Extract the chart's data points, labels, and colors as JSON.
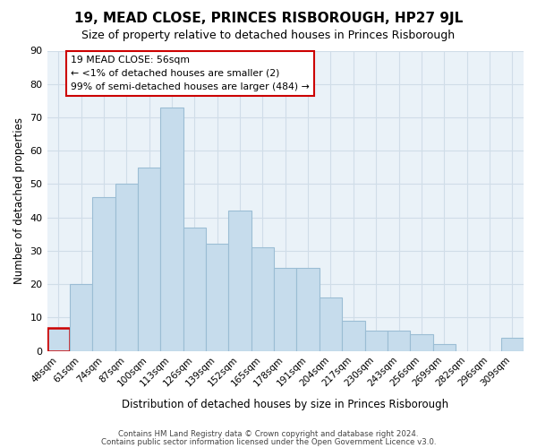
{
  "title": "19, MEAD CLOSE, PRINCES RISBOROUGH, HP27 9JL",
  "subtitle": "Size of property relative to detached houses in Princes Risborough",
  "xlabel": "Distribution of detached houses by size in Princes Risborough",
  "ylabel": "Number of detached properties",
  "footer_line1": "Contains HM Land Registry data © Crown copyright and database right 2024.",
  "footer_line2": "Contains public sector information licensed under the Open Government Licence v3.0.",
  "categories": [
    "48sqm",
    "61sqm",
    "74sqm",
    "87sqm",
    "100sqm",
    "113sqm",
    "126sqm",
    "139sqm",
    "152sqm",
    "165sqm",
    "178sqm",
    "191sqm",
    "204sqm",
    "217sqm",
    "230sqm",
    "243sqm",
    "256sqm",
    "269sqm",
    "282sqm",
    "296sqm",
    "309sqm"
  ],
  "values": [
    7,
    20,
    46,
    50,
    55,
    73,
    37,
    32,
    42,
    31,
    25,
    25,
    16,
    9,
    6,
    6,
    5,
    2,
    0,
    0,
    4
  ],
  "bar_color": "#c6dcec",
  "bar_edge_color": "#9bbdd4",
  "highlight_bar_index": 0,
  "highlight_bar_edge_color": "#cc0000",
  "ylim": [
    0,
    90
  ],
  "yticks": [
    0,
    10,
    20,
    30,
    40,
    50,
    60,
    70,
    80,
    90
  ],
  "annotation_text_line1": "19 MEAD CLOSE: 56sqm",
  "annotation_text_line2": "← <1% of detached houses are smaller (2)",
  "annotation_text_line3": "99% of semi-detached houses are larger (484) →",
  "grid_color": "#d0dde8",
  "background_color": "#eaf2f8",
  "title_fontsize": 11,
  "subtitle_fontsize": 9
}
